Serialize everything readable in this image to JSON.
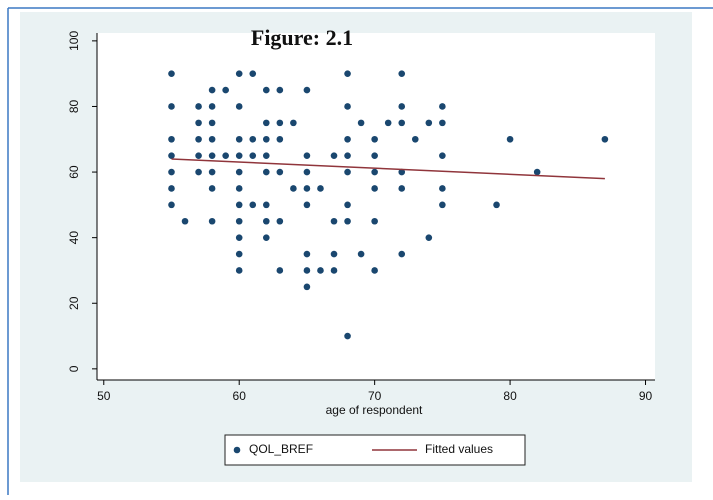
{
  "chart_data": {
    "type": "scatter",
    "title": "Figure: 2.1",
    "x_label": "age of respondent",
    "xlim": [
      49.5,
      90.7
    ],
    "ylim": [
      -3.4,
      102.4
    ],
    "xticks": [
      50,
      60,
      70,
      80,
      90
    ],
    "yticks": [
      0,
      20,
      40,
      60,
      80,
      100
    ],
    "grid": false,
    "legend": "bottom",
    "series": [
      {
        "name": "QOL_BREF",
        "color": "#1a476f",
        "type": "scatter",
        "x": [
          55,
          55,
          55,
          55,
          55,
          55,
          55,
          56,
          57,
          57,
          57,
          57,
          57,
          58,
          58,
          58,
          58,
          58,
          58,
          58,
          58,
          59,
          59,
          60,
          60,
          60,
          60,
          60,
          60,
          60,
          60,
          60,
          60,
          60,
          61,
          61,
          61,
          61,
          62,
          62,
          62,
          62,
          62,
          62,
          62,
          62,
          63,
          63,
          63,
          63,
          63,
          63,
          64,
          64,
          65,
          65,
          65,
          65,
          65,
          65,
          65,
          65,
          66,
          66,
          67,
          67,
          67,
          67,
          68,
          68,
          68,
          68,
          68,
          68,
          68,
          68,
          69,
          69,
          70,
          70,
          70,
          70,
          70,
          70,
          71,
          72,
          72,
          72,
          72,
          72,
          72,
          73,
          74,
          74,
          75,
          75,
          75,
          75,
          75,
          79,
          80,
          82,
          87
        ],
        "values": [
          90,
          80,
          70,
          65,
          60,
          55,
          50,
          45,
          80,
          75,
          70,
          65,
          60,
          85,
          80,
          75,
          70,
          65,
          60,
          55,
          45,
          85,
          65,
          90,
          80,
          70,
          65,
          60,
          55,
          50,
          45,
          40,
          35,
          30,
          90,
          70,
          65,
          50,
          85,
          75,
          70,
          65,
          60,
          50,
          45,
          40,
          85,
          75,
          70,
          60,
          45,
          30,
          75,
          55,
          85,
          65,
          60,
          55,
          50,
          35,
          30,
          25,
          55,
          30,
          65,
          45,
          35,
          30,
          90,
          80,
          70,
          65,
          60,
          50,
          45,
          10,
          75,
          35,
          70,
          65,
          60,
          55,
          45,
          30,
          75,
          90,
          80,
          75,
          60,
          55,
          35,
          70,
          75,
          40,
          80,
          75,
          65,
          55,
          50,
          50,
          70,
          60,
          70
        ]
      },
      {
        "name": "Fitted values",
        "color": "#90353b",
        "type": "line",
        "x": [
          55,
          87
        ],
        "values": [
          64,
          58
        ]
      }
    ]
  }
}
